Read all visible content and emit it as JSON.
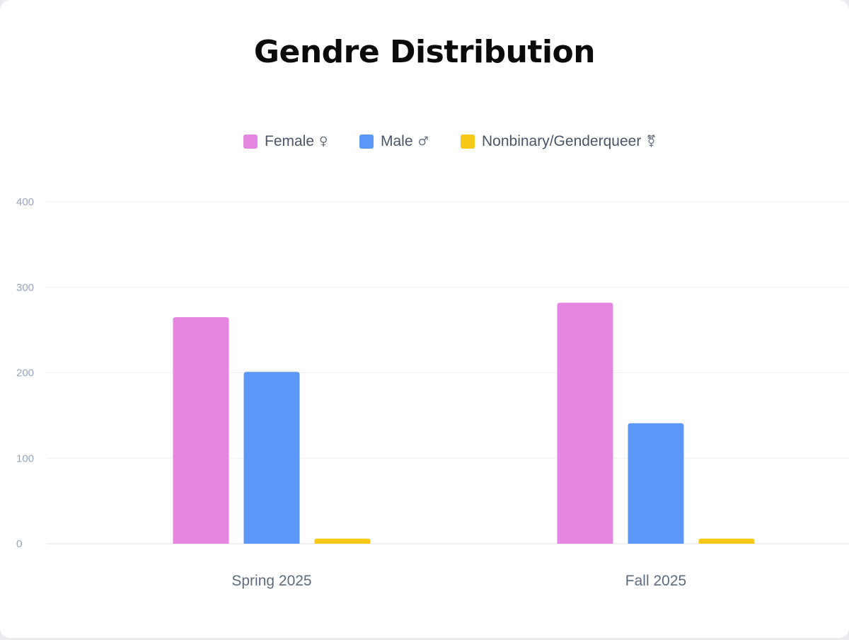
{
  "chart_data": {
    "type": "bar",
    "title": "Gendre Distribution",
    "xlabel": "",
    "ylabel": "",
    "categories": [
      "Spring 2025",
      "Fall 2025"
    ],
    "series": [
      {
        "name": "Female",
        "symbol": "♀",
        "color": "#e587e0",
        "values": [
          265,
          282
        ]
      },
      {
        "name": "Male",
        "symbol": "♂",
        "color": "#5b97f7",
        "values": [
          201,
          141
        ]
      },
      {
        "name": "Nonbinary/Genderqueer",
        "symbol": "⚧",
        "color": "#f7c815",
        "values": [
          6,
          6
        ]
      }
    ],
    "ylim": [
      0,
      400
    ],
    "yticks": [
      0,
      100,
      200,
      300,
      400
    ],
    "grid": true,
    "legend_position": "top-center"
  }
}
